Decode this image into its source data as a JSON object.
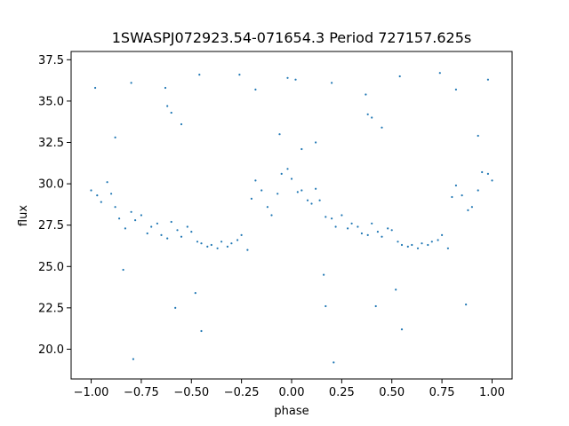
{
  "chart_data": {
    "type": "scatter",
    "title": "1SWASPJ072923.54-071654.3 Period 727157.625s",
    "xlabel": "phase",
    "ylabel": "flux",
    "xlim": [
      -1.1,
      1.1
    ],
    "ylim": [
      18.2,
      38.0
    ],
    "x_ticks": [
      -1.0,
      -0.75,
      -0.5,
      -0.25,
      0.0,
      0.25,
      0.5,
      0.75,
      1.0
    ],
    "x_tick_labels": [
      "−1.00",
      "−0.75",
      "−0.50",
      "−0.25",
      "0.00",
      "0.25",
      "0.50",
      "0.75",
      "1.00"
    ],
    "y_ticks": [
      20.0,
      22.5,
      25.0,
      27.5,
      30.0,
      32.5,
      35.0,
      37.5
    ],
    "y_tick_labels": [
      "20.0",
      "22.5",
      "25.0",
      "27.5",
      "30.0",
      "32.5",
      "35.0",
      "37.5"
    ],
    "grid": false,
    "marker_color": "#1f77b4",
    "series": [
      {
        "x": [
          -1.0,
          -0.97,
          -0.95,
          -0.92,
          -0.9,
          -0.88,
          -0.86,
          -0.83,
          -0.8,
          -0.78,
          -0.75,
          -0.72,
          -0.7,
          -0.67,
          -0.65,
          -0.62,
          -0.6,
          -0.57,
          -0.55,
          -0.52,
          -0.5,
          -0.47,
          -0.45,
          -0.42,
          -0.4,
          -0.37,
          -0.35,
          -0.32,
          -0.3,
          -0.27,
          -0.25,
          -0.22,
          -0.2,
          -0.18,
          -0.15,
          -0.12,
          -0.1,
          -0.07,
          -0.05,
          -0.02,
          0.0,
          0.03,
          0.05,
          0.08,
          0.1,
          0.12,
          0.14,
          0.17,
          0.2,
          0.22,
          0.25,
          0.28,
          0.3,
          0.33,
          0.35,
          0.38,
          0.4,
          0.43,
          0.45,
          0.48,
          0.5,
          0.53,
          0.55,
          0.58,
          0.6,
          0.63,
          0.65,
          0.68,
          0.7,
          0.73,
          0.75,
          0.78,
          0.8,
          0.82,
          0.85,
          0.88,
          0.9,
          0.93,
          0.95,
          0.98,
          1.0
        ],
        "y": [
          29.6,
          29.3,
          28.9,
          30.1,
          29.4,
          28.6,
          27.9,
          27.3,
          28.3,
          27.8,
          28.1,
          27.0,
          27.4,
          27.6,
          26.9,
          26.7,
          27.7,
          27.2,
          26.8,
          27.4,
          27.1,
          26.5,
          26.4,
          26.2,
          26.3,
          26.1,
          26.5,
          26.2,
          26.4,
          26.6,
          26.9,
          26.0,
          29.1,
          30.2,
          29.6,
          28.6,
          28.1,
          29.4,
          30.6,
          30.9,
          30.3,
          29.5,
          29.6,
          29.0,
          28.8,
          29.7,
          29.0,
          28.0,
          27.9,
          27.4,
          28.1,
          27.3,
          27.6,
          27.4,
          27.0,
          26.9,
          27.6,
          27.1,
          26.8,
          27.3,
          27.2,
          26.5,
          26.3,
          26.2,
          26.3,
          26.1,
          26.4,
          26.3,
          26.5,
          26.6,
          26.9,
          26.1,
          29.2,
          29.9,
          29.3,
          28.4,
          28.6,
          29.6,
          30.7,
          30.6,
          30.2
        ]
      },
      {
        "x": [
          -0.98,
          -0.88,
          -0.84,
          -0.8,
          -0.79,
          -0.63,
          -0.62,
          -0.6,
          -0.58,
          -0.55,
          -0.48,
          -0.46,
          -0.45,
          -0.26,
          -0.18,
          -0.02,
          0.02,
          0.12,
          0.16,
          0.2,
          0.21,
          0.37,
          0.38,
          0.4,
          0.42,
          0.45,
          0.52,
          0.54,
          0.55,
          0.74,
          0.82,
          0.98,
          0.93,
          0.87,
          0.17,
          -0.06,
          0.05
        ],
        "y": [
          35.8,
          32.8,
          24.8,
          36.1,
          19.4,
          35.8,
          34.7,
          34.3,
          22.5,
          33.6,
          23.4,
          36.6,
          21.1,
          36.6,
          35.7,
          36.4,
          36.3,
          32.5,
          24.5,
          36.1,
          19.2,
          35.4,
          34.2,
          34.0,
          22.6,
          33.4,
          23.6,
          36.5,
          21.2,
          36.7,
          35.7,
          36.3,
          32.9,
          22.7,
          22.6,
          33.0,
          32.1
        ]
      }
    ]
  }
}
